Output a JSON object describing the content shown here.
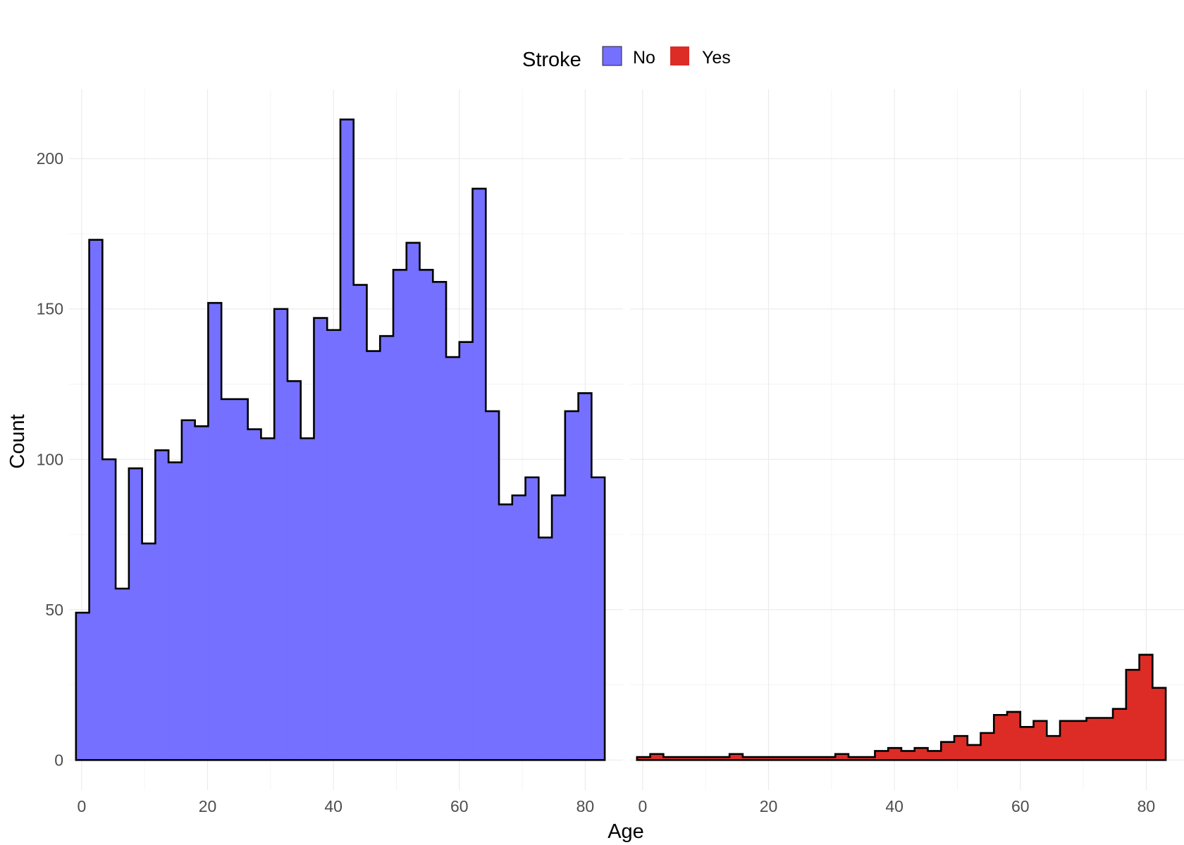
{
  "chart_data": {
    "type": "bar",
    "subtype": "histogram-step",
    "xlabel": "Age",
    "ylabel": "Count",
    "legend": {
      "title": "Stroke",
      "position": "top",
      "entries": [
        {
          "label": "No",
          "color": "#7570ff"
        },
        {
          "label": "Yes",
          "color": "#dd2c26"
        }
      ]
    },
    "grid": true,
    "xlim": [
      -2,
      86
    ],
    "ylim": [
      -10,
      223
    ],
    "x_ticks": [
      "0",
      "20",
      "40",
      "60",
      "80"
    ],
    "x_tick_values": [
      0,
      20,
      40,
      60,
      80
    ],
    "y_ticks": [
      "0",
      "50",
      "100",
      "150",
      "200"
    ],
    "y_tick_values": [
      0,
      50,
      100,
      150,
      200
    ],
    "bin_width": 2.1,
    "bin_start": -0.9,
    "panels": [
      {
        "name": "No",
        "color": "#7570ff",
        "values": [
          49,
          173,
          100,
          57,
          97,
          72,
          103,
          99,
          113,
          111,
          152,
          120,
          120,
          110,
          107,
          150,
          126,
          107,
          147,
          143,
          213,
          158,
          136,
          141,
          163,
          172,
          163,
          159,
          134,
          139,
          190,
          116,
          85,
          88,
          94,
          74,
          88,
          116,
          122,
          94
        ]
      },
      {
        "name": "Yes",
        "color": "#dd2c26",
        "values": [
          1,
          2,
          1,
          1,
          1,
          1,
          1,
          2,
          1,
          1,
          1,
          1,
          1,
          1,
          1,
          2,
          1,
          1,
          3,
          4,
          3,
          4,
          3,
          6,
          8,
          5,
          9,
          15,
          16,
          11,
          13,
          8,
          13,
          13,
          14,
          14,
          17,
          30,
          35,
          24
        ]
      }
    ]
  }
}
